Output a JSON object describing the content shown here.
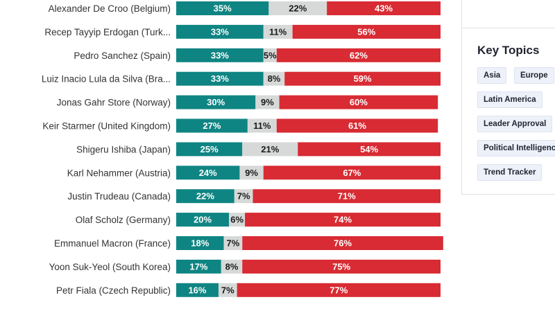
{
  "chart_data": {
    "type": "bar",
    "stacked": true,
    "orientation": "horizontal",
    "categories": [
      "Alexander De Croo (Belgium)",
      "Recep Tayyip Erdogan (Turk...",
      "Pedro Sanchez (Spain)",
      "Luiz Inacio Lula da Silva (Bra...",
      "Jonas Gahr Store (Norway)",
      "Keir Starmer (United Kingdom)",
      "Shigeru Ishiba (Japan)",
      "Karl Nehammer (Austria)",
      "Justin Trudeau (Canada)",
      "Olaf Scholz (Germany)",
      "Emmanuel Macron (France)",
      "Yoon Suk-Yeol (South Korea)",
      "Petr Fiala (Czech Republic)"
    ],
    "series": [
      {
        "color": "#0f8583",
        "label_color": "#ffffff",
        "values": [
          35,
          33,
          33,
          33,
          30,
          27,
          25,
          24,
          22,
          20,
          18,
          17,
          16
        ]
      },
      {
        "color": "#d7d9d9",
        "label_color": "#1a1a1a",
        "values": [
          22,
          11,
          5,
          8,
          9,
          11,
          21,
          9,
          7,
          6,
          7,
          8,
          7
        ]
      },
      {
        "color": "#d82b33",
        "label_color": "#ffffff",
        "values": [
          43,
          56,
          62,
          59,
          60,
          61,
          54,
          67,
          71,
          74,
          76,
          75,
          77
        ]
      }
    ],
    "value_suffix": "%",
    "xlim": [
      0,
      100
    ]
  },
  "sidebar": {
    "title": "Key Topics",
    "tags": [
      {
        "label": "Asia"
      },
      {
        "label": "Europe"
      },
      {
        "label": "Latin America"
      },
      {
        "label": "Leader Approval"
      },
      {
        "label": "Political Intelligence"
      },
      {
        "label": "Trend Tracker"
      }
    ]
  }
}
